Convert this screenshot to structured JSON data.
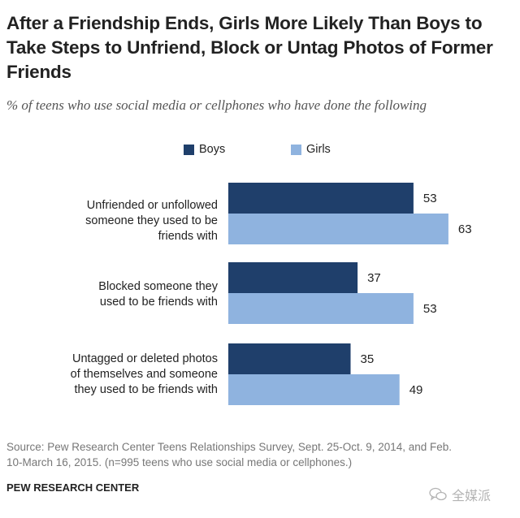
{
  "chart_data": {
    "type": "bar",
    "orientation": "horizontal",
    "title": "After a Friendship Ends, Girls More Likely Than Boys to Take Steps to Unfriend, Block or Untag Photos of Former Friends",
    "subtitle": "% of teens who use social media or cellphones who have done the following",
    "categories": [
      [
        "Unfriended or unfollowed",
        "someone they used to be",
        "friends with"
      ],
      [
        "Blocked someone they",
        "used to be friends with"
      ],
      [
        "Untagged or deleted  photos",
        "of themselves and someone",
        "they used to be friends with"
      ]
    ],
    "series": [
      {
        "name": "Boys",
        "color": "#1f3f6b",
        "values": [
          53,
          37,
          35
        ]
      },
      {
        "name": "Girls",
        "color": "#8fb3df",
        "values": [
          63,
          53,
          49
        ]
      }
    ],
    "xlim": [
      0,
      100
    ],
    "legend_position": "top"
  },
  "footer": {
    "source_line1": "Source: Pew Research Center Teens Relationships Survey, Sept. 25-Oct. 9, 2014, and Feb.",
    "source_line2": "10-March 16, 2015.  (n=995 teens who use social media or cellphones.)",
    "brand": "PEW RESEARCH CENTER"
  },
  "watermark": {
    "text": "全媒派",
    "icon": "chat-bubbles-icon"
  }
}
